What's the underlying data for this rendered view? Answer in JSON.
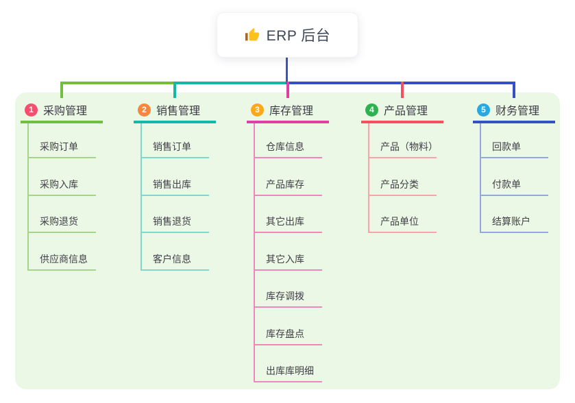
{
  "root": {
    "title": "ERP 后台",
    "icon": "thumbs-up-icon",
    "icon_colors": {
      "hand": "#fcc21b",
      "sleeve": "#a06a2c"
    }
  },
  "canvas": {
    "background": "#ffffff",
    "panel_background": "#ecf8e6",
    "root_connector_color": "#3a54c4",
    "text_color": "#3b3b44"
  },
  "branches": [
    {
      "badge": "1",
      "badge_color": "#f2506e",
      "title": "采购管理",
      "line_color": "#70bf3f",
      "child_line_color": "#a5d48b",
      "children": [
        "采购订单",
        "采购入库",
        "采购退货",
        "供应商信息"
      ]
    },
    {
      "badge": "2",
      "badge_color": "#f7873c",
      "title": "销售管理",
      "line_color": "#14b8a6",
      "child_line_color": "#7fd8c9",
      "children": [
        "销售订单",
        "销售出库",
        "销售退货",
        "客户信息"
      ]
    },
    {
      "badge": "3",
      "badge_color": "#fba91c",
      "title": "库存管理",
      "line_color": "#df3fa2",
      "child_line_color": "#ef86c0",
      "children": [
        "仓库信息",
        "产品库存",
        "其它出库",
        "其它入库",
        "库存调拨",
        "库存盘点",
        "出库库明细"
      ]
    },
    {
      "badge": "4",
      "badge_color": "#2db24f",
      "title": "产品管理",
      "line_color": "#f5505f",
      "child_line_color": "#f9a3ab",
      "children": [
        "产品（物料）",
        "产品分类",
        "产品单位"
      ]
    },
    {
      "badge": "5",
      "badge_color": "#29a8e0",
      "title": "财务管理",
      "line_color": "#3351c1",
      "child_line_color": "#93a7e0",
      "children": [
        "回款单",
        "付款单",
        "结算账户"
      ]
    }
  ]
}
